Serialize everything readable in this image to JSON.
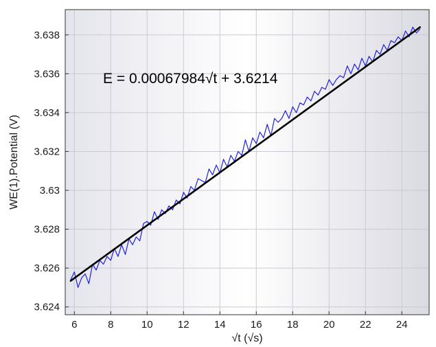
{
  "chart_data": {
    "type": "line",
    "title": "",
    "xlabel": "√t (√s)",
    "ylabel": "WE(1).Potential (V)",
    "xlim": [
      5.5,
      25.5
    ],
    "ylim": [
      3.6236,
      3.6393
    ],
    "x_ticks": [
      6,
      8,
      10,
      12,
      14,
      16,
      18,
      20,
      22,
      24
    ],
    "x_tick_labels": [
      "6",
      "8",
      "10",
      "12",
      "14",
      "16",
      "18",
      "20",
      "22",
      "24"
    ],
    "y_ticks": [
      3.624,
      3.626,
      3.628,
      3.63,
      3.632,
      3.634,
      3.636,
      3.638
    ],
    "y_tick_labels": [
      "3.624",
      "3.626",
      "3.628",
      "3.63",
      "3.632",
      "3.634",
      "3.636",
      "3.638"
    ],
    "grid": true,
    "annotation": "E = 0.00067984√t + 3.6214",
    "series": [
      {
        "kind": "measured",
        "color": "#1f1fe0",
        "x": [
          5.8,
          6.0,
          6.2,
          6.4,
          6.6,
          6.8,
          7.0,
          7.2,
          7.4,
          7.6,
          7.8,
          8.0,
          8.2,
          8.4,
          8.6,
          8.8,
          9.0,
          9.2,
          9.4,
          9.6,
          9.8,
          10.0,
          10.2,
          10.4,
          10.6,
          10.8,
          11.0,
          11.2,
          11.4,
          11.6,
          11.8,
          12.0,
          12.2,
          12.4,
          12.6,
          12.8,
          13.0,
          13.2,
          13.4,
          13.6,
          13.8,
          14.0,
          14.2,
          14.4,
          14.6,
          14.8,
          15.0,
          15.2,
          15.4,
          15.6,
          15.8,
          16.0,
          16.2,
          16.4,
          16.6,
          16.8,
          17.0,
          17.2,
          17.4,
          17.6,
          17.8,
          18.0,
          18.2,
          18.4,
          18.6,
          18.8,
          19.0,
          19.2,
          19.4,
          19.6,
          19.8,
          20.0,
          20.2,
          20.4,
          20.6,
          20.8,
          21.0,
          21.2,
          21.4,
          21.6,
          21.8,
          22.0,
          22.2,
          22.4,
          22.6,
          22.8,
          23.0,
          23.2,
          23.4,
          23.6,
          23.8,
          24.0,
          24.2,
          24.4,
          24.6,
          24.8,
          25.0
        ],
        "y": [
          3.6254,
          3.6258,
          3.625,
          3.6255,
          3.6257,
          3.6252,
          3.6262,
          3.6259,
          3.6264,
          3.6262,
          3.6266,
          3.6264,
          3.627,
          3.6266,
          3.6272,
          3.6267,
          3.6275,
          3.6272,
          3.6276,
          3.6274,
          3.6283,
          3.6284,
          3.6282,
          3.6289,
          3.6285,
          3.629,
          3.6288,
          3.6292,
          3.629,
          3.6295,
          3.6293,
          3.6299,
          3.6296,
          3.6302,
          3.63,
          3.6306,
          3.6305,
          3.6304,
          3.6311,
          3.6308,
          3.6313,
          3.6309,
          3.6316,
          3.6312,
          3.6318,
          3.6315,
          3.632,
          3.6318,
          3.6326,
          3.632,
          3.6327,
          3.6324,
          3.633,
          3.6327,
          3.6334,
          3.6328,
          3.6337,
          3.6335,
          3.6337,
          3.6341,
          3.6337,
          3.6343,
          3.634,
          3.6345,
          3.6344,
          3.6348,
          3.6346,
          3.6351,
          3.6349,
          3.6353,
          3.6352,
          3.6357,
          3.6354,
          3.6357,
          3.6359,
          3.6358,
          3.6364,
          3.636,
          3.6365,
          3.6362,
          3.6368,
          3.6364,
          3.6369,
          3.6366,
          3.6372,
          3.637,
          3.6375,
          3.6372,
          3.6377,
          3.6376,
          3.6379,
          3.6377,
          3.6382,
          3.6379,
          3.6384,
          3.6381,
          3.6383
        ]
      },
      {
        "kind": "fit",
        "color": "#000000",
        "slope": 0.00067984,
        "intercept": 3.6214,
        "x": [
          5.8,
          25.0
        ]
      }
    ]
  }
}
